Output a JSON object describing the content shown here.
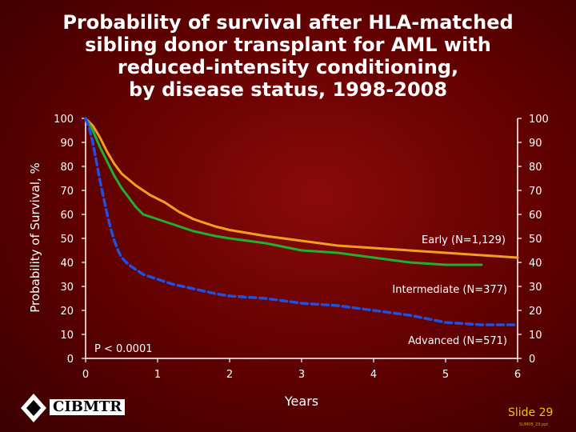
{
  "title_lines": [
    "Probability of survival after HLA-matched",
    "sibling donor transplant for AML with",
    "reduced-intensity conditioning,",
    "by disease status, 1998-2008"
  ],
  "footer": {
    "slide": "Slide 29",
    "slide_code": "SUM08_29.ppt",
    "logo": "CIBMTR"
  },
  "colors": {
    "early": "#f0a020",
    "intermediate": "#20b030",
    "advanced": "#2050e0",
    "axis": "#ffffff",
    "text": "#ffffff"
  },
  "chart_data": {
    "type": "line",
    "title": "Probability of survival after HLA-matched sibling donor transplant for AML with reduced-intensity conditioning, by disease status, 1998-2008",
    "xlabel": "Years",
    "ylabel": "Probability of Survival, %",
    "xlim": [
      0,
      6
    ],
    "ylim": [
      0,
      100
    ],
    "x_ticks": [
      "0",
      "1",
      "2",
      "3",
      "4",
      "5",
      "6"
    ],
    "y_ticks": [
      "0",
      "10",
      "20",
      "30",
      "40",
      "50",
      "60",
      "70",
      "80",
      "90",
      "100"
    ],
    "annotation": "P < 0.0001",
    "grid": false,
    "series": [
      {
        "name": "Early (N=1,129)",
        "style": "solid",
        "x": [
          0,
          0.1,
          0.2,
          0.3,
          0.4,
          0.5,
          0.7,
          0.9,
          1.1,
          1.3,
          1.5,
          1.8,
          2.0,
          2.5,
          3.0,
          3.5,
          4.0,
          4.5,
          5.0,
          5.5,
          6.0
        ],
        "y": [
          100,
          97,
          92,
          86,
          81,
          77,
          72,
          68,
          65,
          61,
          58,
          55,
          53.5,
          51,
          49,
          47,
          46,
          45,
          44,
          43,
          42
        ]
      },
      {
        "name": "Intermediate (N=377)",
        "style": "solid",
        "x": [
          0,
          0.1,
          0.2,
          0.3,
          0.4,
          0.5,
          0.6,
          0.7,
          0.8,
          1.0,
          1.2,
          1.5,
          1.8,
          2.0,
          2.5,
          3.0,
          3.5,
          4.0,
          4.5,
          5.0,
          5.5
        ],
        "y": [
          100,
          95,
          88,
          82,
          76,
          71,
          67,
          63,
          60,
          58,
          56,
          53,
          51,
          50,
          48,
          45,
          44,
          42,
          40,
          39,
          39
        ]
      },
      {
        "name": "Advanced (N=571)",
        "style": "dashed",
        "x": [
          0,
          0.05,
          0.1,
          0.15,
          0.2,
          0.25,
          0.3,
          0.35,
          0.4,
          0.45,
          0.5,
          0.6,
          0.7,
          0.8,
          1.0,
          1.2,
          1.5,
          1.8,
          2.0,
          2.5,
          3.0,
          3.5,
          4.0,
          4.5,
          5.0,
          5.5,
          6.0
        ],
        "y": [
          100,
          96,
          90,
          82,
          74,
          67,
          60,
          54,
          49,
          45,
          42,
          39,
          37,
          35,
          33,
          31,
          29,
          27,
          26,
          25,
          23,
          22,
          20,
          18,
          15,
          14,
          14
        ]
      }
    ],
    "labels": [
      "Early (N=1,129)",
      "Intermediate (N=377)",
      "Advanced (N=571)"
    ]
  }
}
